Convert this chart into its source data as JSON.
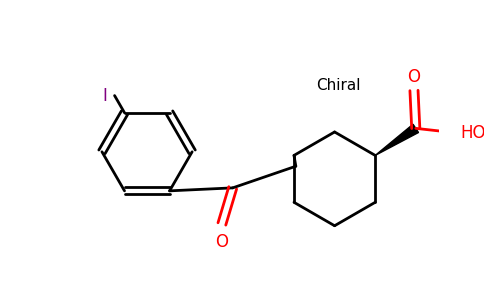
{
  "background_color": "#ffffff",
  "bond_color": "#000000",
  "oxygen_color": "#ff0000",
  "iodine_color": "#800080",
  "chiral_text": "Chiral",
  "chiral_text_color": "#000000",
  "label_O_carbonyl": "O",
  "label_O_cooh": "O",
  "label_OH": "HO",
  "label_I": "I",
  "figsize": [
    4.84,
    3.0
  ],
  "dpi": 100
}
